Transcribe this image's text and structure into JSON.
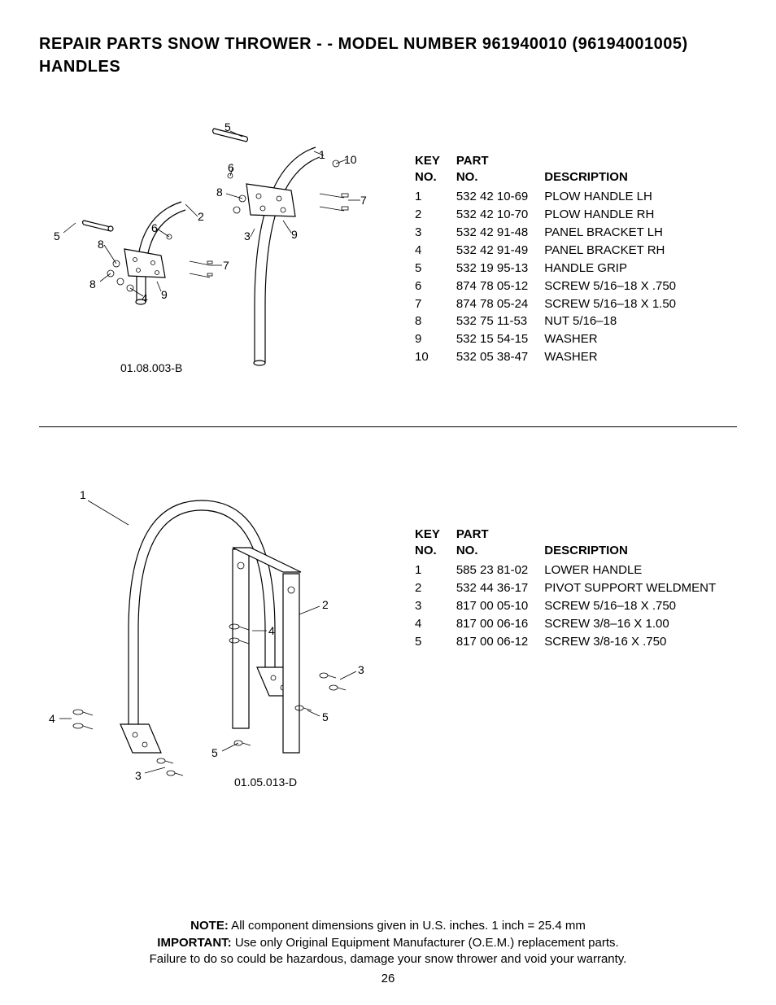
{
  "title_line1": "REPAIR PARTS  SNOW THROWER - - MODEL NUMBER  961940010 (96194001005)",
  "title_line2": "HANDLES",
  "diagram1": {
    "drawing_no": "01.08.003-B",
    "callouts": [
      "1",
      "2",
      "3",
      "4",
      "5",
      "6",
      "7",
      "8",
      "9",
      "10"
    ],
    "headers": {
      "key": "KEY\nNO.",
      "part": "PART\nNO.",
      "desc": "DESCRIPTION"
    },
    "rows": [
      {
        "key": "1",
        "part": "532 42 10-69",
        "desc": "PLOW HANDLE LH"
      },
      {
        "key": "2",
        "part": "532 42 10-70",
        "desc": "PLOW HANDLE RH"
      },
      {
        "key": "3",
        "part": "532 42 91-48",
        "desc": "PANEL BRACKET LH"
      },
      {
        "key": "4",
        "part": "532 42 91-49",
        "desc": "PANEL BRACKET RH"
      },
      {
        "key": "5",
        "part": "532 19 95-13",
        "desc": "HANDLE GRIP"
      },
      {
        "key": "6",
        "part": "874 78 05-12",
        "desc": "SCREW 5/16–18 X .750"
      },
      {
        "key": "7",
        "part": "874 78 05-24",
        "desc": "SCREW 5/16–18 X 1.50"
      },
      {
        "key": "8",
        "part": "532 75 11-53",
        "desc": "NUT 5/16–18"
      },
      {
        "key": "9",
        "part": "532 15 54-15",
        "desc": "WASHER"
      },
      {
        "key": "10",
        "part": "532 05 38-47",
        "desc": "WASHER"
      }
    ]
  },
  "diagram2": {
    "drawing_no": "01.05.013-D",
    "callouts": [
      "1",
      "2",
      "3",
      "4",
      "5"
    ],
    "headers": {
      "key": "KEY\nNO.",
      "part": "PART\nNO.",
      "desc": "DESCRIPTION"
    },
    "rows": [
      {
        "key": "1",
        "part": "585 23 81-02",
        "desc": "LOWER HANDLE"
      },
      {
        "key": "2",
        "part": "532 44 36-17",
        "desc": "PIVOT SUPPORT WELDMENT"
      },
      {
        "key": "3",
        "part": "817 00 05-10",
        "desc": "SCREW 5/16–18 X .750"
      },
      {
        "key": "4",
        "part": "817 00 06-16",
        "desc": "SCREW 3/8–16 X 1.00"
      },
      {
        "key": "5",
        "part": "817 00 06-12",
        "desc": "SCREW 3/8-16 X .750"
      }
    ]
  },
  "footer": {
    "note_label": "NOTE:",
    "note_text": "  All component dimensions given in U.S. inches.    1 inch = 25.4 mm",
    "important_label": "IMPORTANT:",
    "important_text": " Use only Original Equipment Manufacturer (O.E.M.) replacement parts.",
    "line3": "Failure to do so could be hazardous, damage your snow thrower and void your warranty."
  },
  "page": "26"
}
